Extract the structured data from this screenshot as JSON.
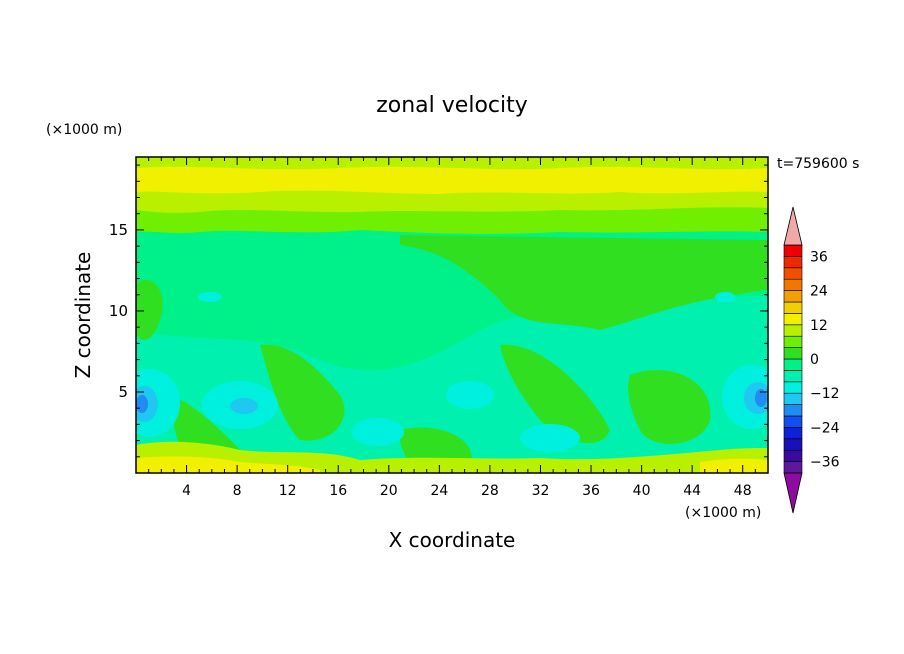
{
  "chart_data": {
    "type": "heatmap",
    "title": "zonal velocity",
    "xlabel": "X coordinate",
    "ylabel": "Z coordinate",
    "x_unit_label": "(×1000 m)",
    "y_unit_label": "(×1000 m)",
    "time_label": "t=759600 s",
    "xlim": [
      0,
      50
    ],
    "ylim": [
      0,
      19.5
    ],
    "x_ticks": [
      4,
      8,
      12,
      16,
      20,
      24,
      28,
      32,
      36,
      40,
      44,
      48
    ],
    "y_ticks": [
      5,
      10,
      15
    ],
    "colorbar": {
      "levels": [
        -40,
        -36,
        -32,
        -28,
        -24,
        -20,
        -16,
        -12,
        -8,
        -4,
        0,
        4,
        8,
        12,
        16,
        20,
        24,
        28,
        32,
        36,
        40
      ],
      "tick_values": [
        -36,
        -24,
        -12,
        0,
        12,
        24,
        36
      ],
      "tick_labels": [
        "−36",
        "−24",
        "−12",
        "0",
        "12",
        "24",
        "36"
      ],
      "colors": [
        "#5a1a9a",
        "#3a0aa0",
        "#1a10b8",
        "#1020d8",
        "#1050f0",
        "#1e8cf0",
        "#1ec8f0",
        "#00f0e0",
        "#00f0b0",
        "#00f08a",
        "#30e020",
        "#70f000",
        "#b8f000",
        "#f0f000",
        "#f0d000",
        "#f0a000",
        "#f07800",
        "#f05000",
        "#f02800",
        "#f00000"
      ],
      "under_color": "#8e0aa0",
      "over_color": "#f0a8a8"
    },
    "field_summary": [
      {
        "region": "top layer z 17.5-19.5",
        "value": 10
      },
      {
        "region": "layer z 15.5-17.5",
        "value": 4
      },
      {
        "region": "mid layer z 6-15.5",
        "value": -3
      },
      {
        "region": "lower layer z 0-6",
        "value": -7
      },
      {
        "region": "surface z 0-1",
        "value": 8
      },
      {
        "region": "core near x 0-2, z 4.5",
        "value": -19
      },
      {
        "region": "core near x 49-50, z 4.8",
        "value": -19
      },
      {
        "region": "core near x 8, z 4.2",
        "value": -14
      }
    ]
  }
}
